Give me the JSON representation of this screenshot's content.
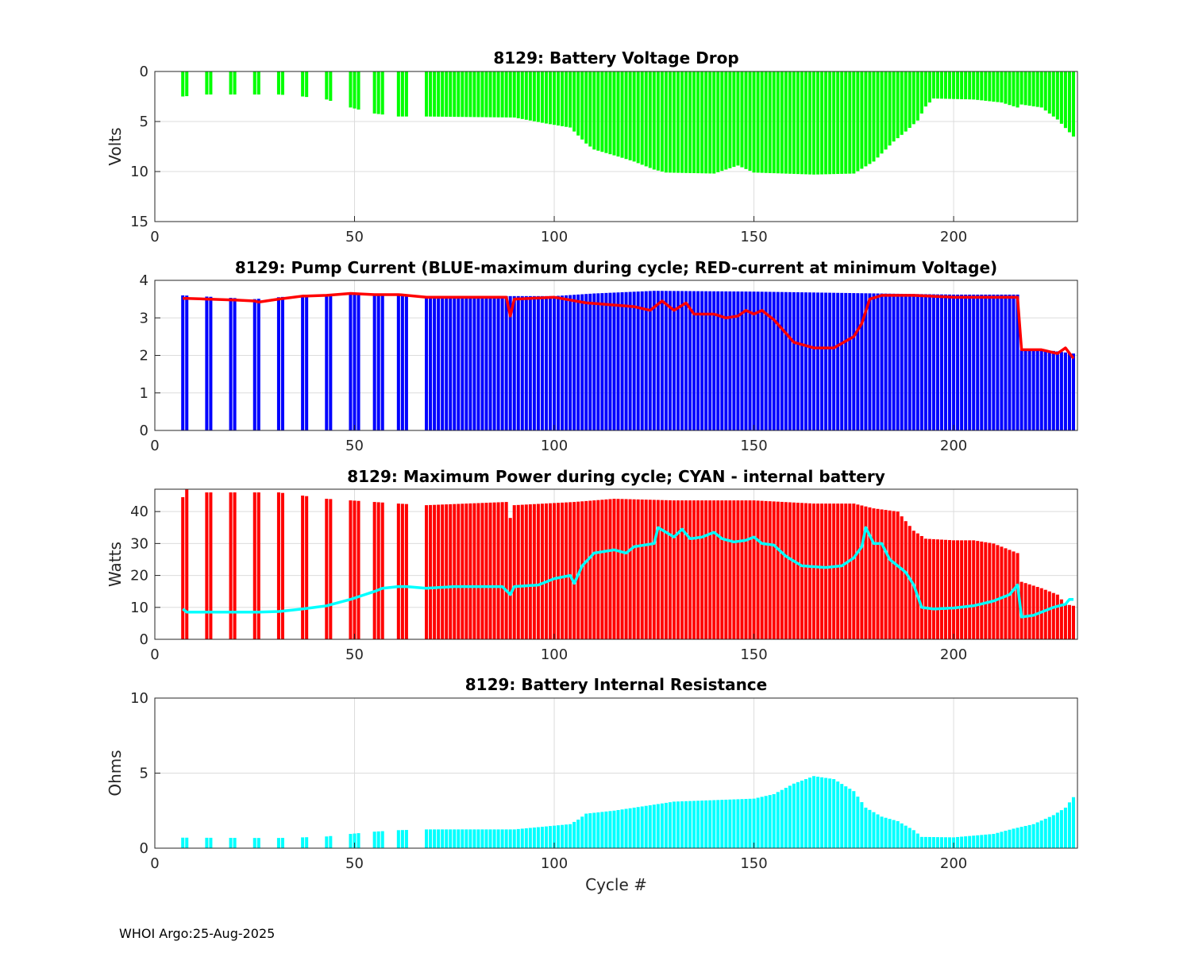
{
  "footer": "WHOI Argo:25-Aug-2025",
  "colors": {
    "green": "#00ff00",
    "blue": "#0000ff",
    "red": "#ff0000",
    "cyan": "#00ffff",
    "grid": "#dcdcdc",
    "axis": "#262626"
  },
  "chart_data": [
    {
      "id": "voltage",
      "type": "bar",
      "title": "8129: Battery Voltage Drop",
      "xlabel": "",
      "ylabel": "Volts",
      "xlim": [
        0,
        231
      ],
      "ylim": [
        0,
        15
      ],
      "y_reversed": true,
      "xticks": [
        "0",
        "50",
        "100",
        "150",
        "200"
      ],
      "xtick_values": [
        0,
        50,
        100,
        150,
        200
      ],
      "yticks": [
        "0",
        "5",
        "10",
        "15"
      ],
      "ytick_values": [
        0,
        5,
        10,
        15
      ],
      "bar_color": "green",
      "series": [
        {
          "name": "Battery Voltage Drop",
          "x_start": 7,
          "x_end": 230,
          "knots": [
            [
              7,
              2.5
            ],
            [
              13,
              2.3
            ],
            [
              19,
              2.3
            ],
            [
              25,
              2.3
            ],
            [
              31,
              2.3
            ],
            [
              37,
              2.5
            ],
            [
              43,
              2.8
            ],
            [
              49,
              3.6
            ],
            [
              55,
              4.2
            ],
            [
              61,
              4.5
            ],
            [
              68,
              4.5
            ],
            [
              90,
              4.6
            ],
            [
              98,
              5.2
            ],
            [
              104,
              5.6
            ],
            [
              108,
              7.2
            ],
            [
              110,
              7.8
            ],
            [
              116,
              8.5
            ],
            [
              120,
              9.0
            ],
            [
              125,
              9.8
            ],
            [
              128,
              10.1
            ],
            [
              140,
              10.2
            ],
            [
              146,
              9.4
            ],
            [
              150,
              10.1
            ],
            [
              165,
              10.3
            ],
            [
              175,
              10.2
            ],
            [
              180,
              9.0
            ],
            [
              185,
              7.0
            ],
            [
              188,
              6.0
            ],
            [
              191,
              4.9
            ],
            [
              193,
              3.5
            ],
            [
              195,
              2.7
            ],
            [
              205,
              2.8
            ],
            [
              212,
              3.1
            ],
            [
              216,
              3.6
            ],
            [
              217,
              3.3
            ],
            [
              222,
              3.6
            ],
            [
              226,
              4.8
            ],
            [
              230,
              6.5
            ]
          ]
        }
      ]
    },
    {
      "id": "current",
      "type": "bar",
      "title": "8129: Pump Current (BLUE-maximum during cycle; RED-current at minimum Voltage)",
      "xlabel": "",
      "ylabel": "",
      "xlim": [
        0,
        231
      ],
      "ylim": [
        0,
        4
      ],
      "xticks": [
        "0",
        "50",
        "100",
        "150",
        "200"
      ],
      "xtick_values": [
        0,
        50,
        100,
        150,
        200
      ],
      "yticks": [
        "0",
        "1",
        "2",
        "3",
        "4"
      ],
      "ytick_values": [
        0,
        1,
        2,
        3,
        4
      ],
      "bar_color": "blue",
      "line_color": "red",
      "series": [
        {
          "name": "maximum during cycle",
          "x_start": 7,
          "x_end": 230,
          "knots": [
            [
              7,
              3.6
            ],
            [
              25,
              3.5
            ],
            [
              37,
              3.6
            ],
            [
              49,
              3.65
            ],
            [
              61,
              3.62
            ],
            [
              68,
              3.58
            ],
            [
              100,
              3.58
            ],
            [
              110,
              3.65
            ],
            [
              125,
              3.72
            ],
            [
              150,
              3.7
            ],
            [
              200,
              3.62
            ],
            [
              216,
              3.62
            ],
            [
              217,
              2.15
            ],
            [
              225,
              2.12
            ],
            [
              230,
              2.05
            ]
          ]
        },
        {
          "name": "current at minimum Voltage",
          "x_start": 7,
          "x_end": 230,
          "knots": [
            [
              7,
              3.52
            ],
            [
              19,
              3.48
            ],
            [
              25,
              3.45
            ],
            [
              26,
              3.42
            ],
            [
              31,
              3.5
            ],
            [
              37,
              3.58
            ],
            [
              43,
              3.6
            ],
            [
              49,
              3.65
            ],
            [
              55,
              3.62
            ],
            [
              61,
              3.62
            ],
            [
              68,
              3.55
            ],
            [
              88,
              3.55
            ],
            [
              89,
              3.05
            ],
            [
              90,
              3.5
            ],
            [
              100,
              3.55
            ],
            [
              108,
              3.4
            ],
            [
              120,
              3.3
            ],
            [
              124,
              3.2
            ],
            [
              127,
              3.45
            ],
            [
              130,
              3.2
            ],
            [
              133,
              3.4
            ],
            [
              135,
              3.1
            ],
            [
              140,
              3.1
            ],
            [
              143,
              3.0
            ],
            [
              146,
              3.05
            ],
            [
              148,
              3.2
            ],
            [
              150,
              3.1
            ],
            [
              152,
              3.2
            ],
            [
              155,
              2.95
            ],
            [
              160,
              2.35
            ],
            [
              165,
              2.2
            ],
            [
              170,
              2.2
            ],
            [
              175,
              2.5
            ],
            [
              177,
              2.85
            ],
            [
              179,
              3.5
            ],
            [
              182,
              3.6
            ],
            [
              186,
              3.6
            ],
            [
              190,
              3.6
            ],
            [
              200,
              3.55
            ],
            [
              216,
              3.55
            ],
            [
              217,
              2.15
            ],
            [
              222,
              2.15
            ],
            [
              226,
              2.05
            ],
            [
              228,
              2.2
            ],
            [
              230,
              1.92
            ]
          ]
        }
      ]
    },
    {
      "id": "power",
      "type": "bar",
      "title": "8129: Maximum Power during cycle; CYAN - internal battery",
      "xlabel": "",
      "ylabel": "Watts",
      "xlim": [
        0,
        231
      ],
      "ylim": [
        0,
        47
      ],
      "xticks": [
        "0",
        "50",
        "100",
        "150",
        "200"
      ],
      "xtick_values": [
        0,
        50,
        100,
        150,
        200
      ],
      "yticks": [
        "0",
        "10",
        "20",
        "30",
        "40"
      ],
      "ytick_values": [
        0,
        10,
        20,
        30,
        40
      ],
      "bar_color": "red",
      "line_color": "cyan",
      "series": [
        {
          "name": "Maximum Power during cycle",
          "x_start": 7,
          "x_end": 230,
          "knots": [
            [
              7,
              44.5
            ],
            [
              8,
              47
            ],
            [
              13,
              46
            ],
            [
              19,
              46
            ],
            [
              25,
              46
            ],
            [
              31,
              46
            ],
            [
              37,
              45
            ],
            [
              43,
              44
            ],
            [
              49,
              43.5
            ],
            [
              55,
              43
            ],
            [
              61,
              42.5
            ],
            [
              68,
              42
            ],
            [
              88,
              43
            ],
            [
              89,
              38
            ],
            [
              90,
              42
            ],
            [
              105,
              43
            ],
            [
              115,
              44
            ],
            [
              130,
              43.5
            ],
            [
              150,
              43.5
            ],
            [
              165,
              42.5
            ],
            [
              175,
              42.5
            ],
            [
              180,
              41
            ],
            [
              186,
              40
            ],
            [
              190,
              34
            ],
            [
              193,
              31.5
            ],
            [
              200,
              31
            ],
            [
              205,
              31
            ],
            [
              210,
              30
            ],
            [
              216,
              27
            ],
            [
              217,
              18
            ],
            [
              222,
              16
            ],
            [
              226,
              14
            ],
            [
              228,
              11
            ],
            [
              230,
              10.5
            ]
          ]
        },
        {
          "name": "internal battery",
          "x_start": 7,
          "x_end": 230,
          "knots": [
            [
              7,
              9.5
            ],
            [
              8,
              8.5
            ],
            [
              25,
              8.5
            ],
            [
              31,
              8.7
            ],
            [
              37,
              9.5
            ],
            [
              43,
              10.5
            ],
            [
              49,
              12.5
            ],
            [
              55,
              15
            ],
            [
              58,
              16.5
            ],
            [
              65,
              16.5
            ],
            [
              68,
              16
            ],
            [
              75,
              16.5
            ],
            [
              87,
              16.5
            ],
            [
              89,
              14
            ],
            [
              90,
              16.5
            ],
            [
              96,
              17
            ],
            [
              100,
              19
            ],
            [
              104,
              20
            ],
            [
              105,
              17.5
            ],
            [
              107,
              23
            ],
            [
              110,
              27
            ],
            [
              115,
              28
            ],
            [
              118,
              27
            ],
            [
              120,
              29
            ],
            [
              125,
              30
            ],
            [
              126,
              35
            ],
            [
              128,
              33.5
            ],
            [
              130,
              32
            ],
            [
              132,
              34.5
            ],
            [
              134,
              31.5
            ],
            [
              137,
              32
            ],
            [
              140,
              33.5
            ],
            [
              142,
              31.5
            ],
            [
              145,
              30.5
            ],
            [
              148,
              31
            ],
            [
              150,
              32
            ],
            [
              152,
              30
            ],
            [
              155,
              29.5
            ],
            [
              158,
              26
            ],
            [
              162,
              23
            ],
            [
              168,
              22.5
            ],
            [
              172,
              23
            ],
            [
              175,
              25.5
            ],
            [
              177,
              29
            ],
            [
              178,
              35
            ],
            [
              180,
              30
            ],
            [
              182,
              30
            ],
            [
              184,
              25
            ],
            [
              188,
              21
            ],
            [
              190,
              17
            ],
            [
              192,
              10
            ],
            [
              195,
              9.5
            ],
            [
              200,
              9.8
            ],
            [
              205,
              10.5
            ],
            [
              210,
              12
            ],
            [
              214,
              14
            ],
            [
              216,
              17
            ],
            [
              217,
              7
            ],
            [
              220,
              7.5
            ],
            [
              225,
              10
            ],
            [
              228,
              11
            ],
            [
              229,
              12.5
            ],
            [
              230,
              12.5
            ]
          ]
        }
      ]
    },
    {
      "id": "resistance",
      "type": "bar",
      "title": "8129: Battery Internal Resistance",
      "xlabel": "Cycle #",
      "ylabel": "Ohms",
      "xlim": [
        0,
        231
      ],
      "ylim": [
        0,
        10
      ],
      "xticks": [
        "0",
        "50",
        "100",
        "150",
        "200"
      ],
      "xtick_values": [
        0,
        50,
        100,
        150,
        200
      ],
      "yticks": [
        "0",
        "5",
        "10"
      ],
      "ytick_values": [
        0,
        5,
        10
      ],
      "bar_color": "cyan",
      "series": [
        {
          "name": "Battery Internal Resistance",
          "x_start": 7,
          "x_end": 230,
          "knots": [
            [
              7,
              0.7
            ],
            [
              25,
              0.68
            ],
            [
              31,
              0.68
            ],
            [
              37,
              0.72
            ],
            [
              43,
              0.78
            ],
            [
              49,
              0.95
            ],
            [
              55,
              1.1
            ],
            [
              61,
              1.2
            ],
            [
              68,
              1.25
            ],
            [
              90,
              1.25
            ],
            [
              100,
              1.5
            ],
            [
              104,
              1.6
            ],
            [
              106,
              1.9
            ],
            [
              108,
              2.3
            ],
            [
              115,
              2.5
            ],
            [
              125,
              2.9
            ],
            [
              130,
              3.1
            ],
            [
              140,
              3.2
            ],
            [
              150,
              3.3
            ],
            [
              155,
              3.6
            ],
            [
              160,
              4.3
            ],
            [
              165,
              4.8
            ],
            [
              170,
              4.6
            ],
            [
              175,
              3.8
            ],
            [
              178,
              2.7
            ],
            [
              182,
              2.1
            ],
            [
              186,
              1.8
            ],
            [
              190,
              1.2
            ],
            [
              192,
              0.75
            ],
            [
              200,
              0.72
            ],
            [
              210,
              0.95
            ],
            [
              215,
              1.3
            ],
            [
              220,
              1.6
            ],
            [
              225,
              2.2
            ],
            [
              228,
              2.7
            ],
            [
              230,
              3.4
            ]
          ]
        }
      ]
    }
  ]
}
